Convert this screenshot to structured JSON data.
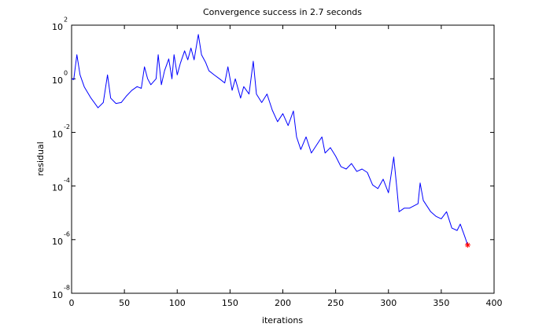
{
  "chart_data": {
    "type": "line",
    "title": "Convergence success in 2.7 seconds",
    "x_label": "iterations",
    "y_label": "residual",
    "log_y": true,
    "xlim": [
      0,
      400
    ],
    "xticks": [
      0,
      50,
      100,
      150,
      200,
      250,
      300,
      350,
      400
    ],
    "ylim": [
      1e-08,
      100
    ],
    "yticks": [
      {
        "value": 1e-08,
        "label": "10",
        "exponent": "-8"
      },
      {
        "value": 1e-06,
        "label": "10",
        "exponent": "-6"
      },
      {
        "value": 0.0001,
        "label": "10",
        "exponent": "-4"
      },
      {
        "value": 0.01,
        "label": "10",
        "exponent": "-2"
      },
      {
        "value": 1,
        "label": "10",
        "exponent": "0"
      },
      {
        "value": 100,
        "label": "10",
        "exponent": "2"
      }
    ],
    "series": [
      {
        "color": "#0000ff",
        "x": [
          0,
          2,
          5,
          8,
          12,
          18,
          25,
          30,
          34,
          37,
          42,
          47,
          52,
          57,
          62,
          66,
          69,
          72,
          75,
          80,
          82,
          85,
          88,
          92,
          95,
          97,
          100,
          103,
          107,
          110,
          113,
          116,
          120,
          123,
          127,
          130,
          135,
          140,
          145,
          148,
          152,
          155,
          160,
          163,
          168,
          172,
          175,
          180,
          185,
          190,
          195,
          200,
          205,
          210,
          213,
          217,
          222,
          227,
          232,
          237,
          240,
          245,
          250,
          255,
          260,
          265,
          270,
          275,
          280,
          285,
          290,
          295,
          300,
          305,
          308,
          310,
          315,
          320,
          325,
          328,
          330,
          333,
          340,
          345,
          350,
          355,
          360,
          365,
          368,
          372,
          375
        ],
        "values": [
          1,
          0.93,
          7.9,
          1.4,
          0.5,
          0.2,
          0.083,
          0.13,
          1.4,
          0.19,
          0.12,
          0.13,
          0.23,
          0.37,
          0.51,
          0.44,
          2.8,
          1.0,
          0.6,
          1.0,
          7.9,
          0.6,
          2.0,
          5.5,
          1.0,
          7.9,
          1.4,
          3.8,
          11,
          5.1,
          14,
          5.1,
          45,
          7.9,
          4.0,
          2.0,
          1.4,
          1.0,
          0.7,
          2.8,
          0.37,
          1.0,
          0.19,
          0.51,
          0.27,
          4.5,
          0.27,
          0.13,
          0.27,
          0.068,
          0.025,
          0.05,
          0.018,
          0.063,
          0.0068,
          0.0023,
          0.0068,
          0.0017,
          0.0034,
          0.0068,
          0.0017,
          0.0027,
          0.0013,
          0.00053,
          0.00043,
          0.00069,
          0.00035,
          0.00043,
          0.00032,
          0.00011,
          8e-05,
          0.00018,
          5.6e-05,
          0.0012,
          8e-05,
          1.1e-05,
          1.5e-05,
          1.5e-05,
          1.9e-05,
          2.2e-05,
          0.00013,
          2.9e-05,
          1.1e-05,
          7.4e-06,
          6e-06,
          1.1e-05,
          2.7e-06,
          2.2e-06,
          3.8e-06,
          1.4e-06,
          6.3e-07
        ]
      },
      {
        "color": "#ff0000",
        "marker": "*",
        "x": [
          375
        ],
        "values": [
          6.3e-07
        ]
      }
    ]
  }
}
